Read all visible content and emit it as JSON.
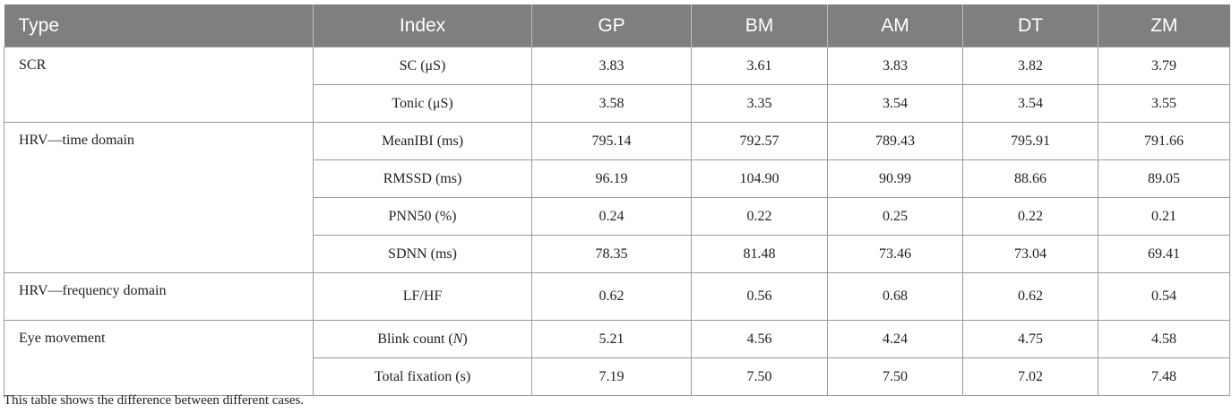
{
  "table": {
    "headers": [
      "Type",
      "Index",
      "GP",
      "BM",
      "AM",
      "DT",
      "ZM"
    ],
    "groups": [
      {
        "type": "SCR",
        "rows": [
          {
            "index": "SC (μS)",
            "values": [
              "3.83",
              "3.61",
              "3.83",
              "3.82",
              "3.79"
            ]
          },
          {
            "index": "Tonic (μS)",
            "values": [
              "3.58",
              "3.35",
              "3.54",
              "3.54",
              "3.55"
            ]
          }
        ]
      },
      {
        "type": "HRV—time domain",
        "rows": [
          {
            "index": "MeanIBI (ms)",
            "values": [
              "795.14",
              "792.57",
              "789.43",
              "795.91",
              "791.66"
            ]
          },
          {
            "index": "RMSSD (ms)",
            "values": [
              "96.19",
              "104.90",
              "90.99",
              "88.66",
              "89.05"
            ]
          },
          {
            "index": "PNN50 (%)",
            "values": [
              "0.24",
              "0.22",
              "0.25",
              "0.22",
              "0.21"
            ]
          },
          {
            "index": "SDNN (ms)",
            "values": [
              "78.35",
              "81.48",
              "73.46",
              "73.04",
              "69.41"
            ]
          }
        ]
      },
      {
        "type": "HRV—frequency domain",
        "rows": [
          {
            "index": "LF/HF",
            "values": [
              "0.62",
              "0.56",
              "0.68",
              "0.62",
              "0.54"
            ]
          }
        ]
      },
      {
        "type": "Eye movement",
        "rows": [
          {
            "index": "Blink count (N)",
            "values": [
              "5.21",
              "4.56",
              "4.24",
              "4.75",
              "4.58"
            ]
          },
          {
            "index": "Total fixation (s)",
            "values": [
              "7.19",
              "7.50",
              "7.50",
              "7.02",
              "7.48"
            ]
          }
        ]
      }
    ]
  },
  "caption": "This table shows the difference between different cases.",
  "colors": {
    "header_bg": "#7f7f7f",
    "header_text": "#ffffff",
    "border": "#9a9a9a"
  }
}
